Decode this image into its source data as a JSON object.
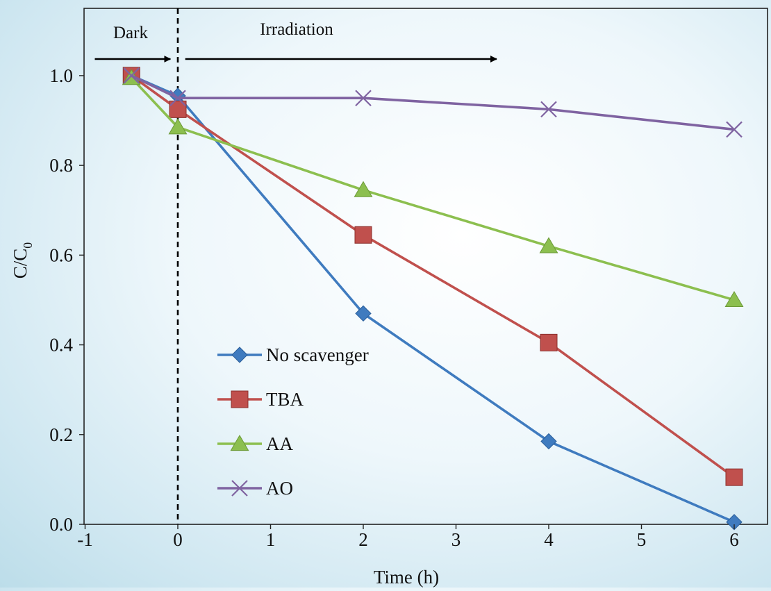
{
  "chart_data": {
    "type": "line",
    "title": "",
    "xlabel": "Time (h)",
    "ylabel": "C/C0",
    "ylabel_main": "C/C",
    "ylabel_sub": "0",
    "xlim": [
      -1,
      6.5
    ],
    "ylim": [
      0,
      1.15
    ],
    "x_ticks": [
      -1,
      0,
      1,
      2,
      3,
      4,
      5,
      6
    ],
    "y_ticks": [
      0.0,
      0.2,
      0.4,
      0.6,
      0.8,
      1.0
    ],
    "x_tick_labels": [
      "-1",
      "0",
      "1",
      "2",
      "3",
      "4",
      "5",
      "6"
    ],
    "y_tick_labels": [
      "0.0",
      "0.2",
      "0.4",
      "0.6",
      "0.8",
      "1.0"
    ],
    "grid": false,
    "legend_position": "center-left",
    "divider_x": 0,
    "annotations": [
      {
        "text": "Dark",
        "arrow_from": -1,
        "arrow_to": -0.05
      },
      {
        "text": "Irradiation",
        "arrow_from": 0.05,
        "arrow_to": 3.4
      }
    ],
    "series": [
      {
        "name": "No scavenger",
        "color": "#3f7bbf",
        "marker": "diamond",
        "x": [
          -0.5,
          0,
          2,
          4,
          6
        ],
        "y": [
          1.0,
          0.955,
          0.47,
          0.185,
          0.005
        ]
      },
      {
        "name": "TBA",
        "color": "#c0504d",
        "marker": "square",
        "x": [
          -0.5,
          0,
          2,
          4,
          6
        ],
        "y": [
          1.0,
          0.925,
          0.645,
          0.405,
          0.105
        ]
      },
      {
        "name": "AA",
        "color": "#8cbf4f",
        "marker": "triangle",
        "x": [
          -0.5,
          0,
          2,
          4,
          6
        ],
        "y": [
          0.995,
          0.885,
          0.745,
          0.62,
          0.5
        ]
      },
      {
        "name": "AO",
        "color": "#7f63a1",
        "marker": "x",
        "x": [
          -0.5,
          0,
          2,
          4,
          6
        ],
        "y": [
          1.0,
          0.95,
          0.95,
          0.925,
          0.88
        ]
      }
    ]
  }
}
